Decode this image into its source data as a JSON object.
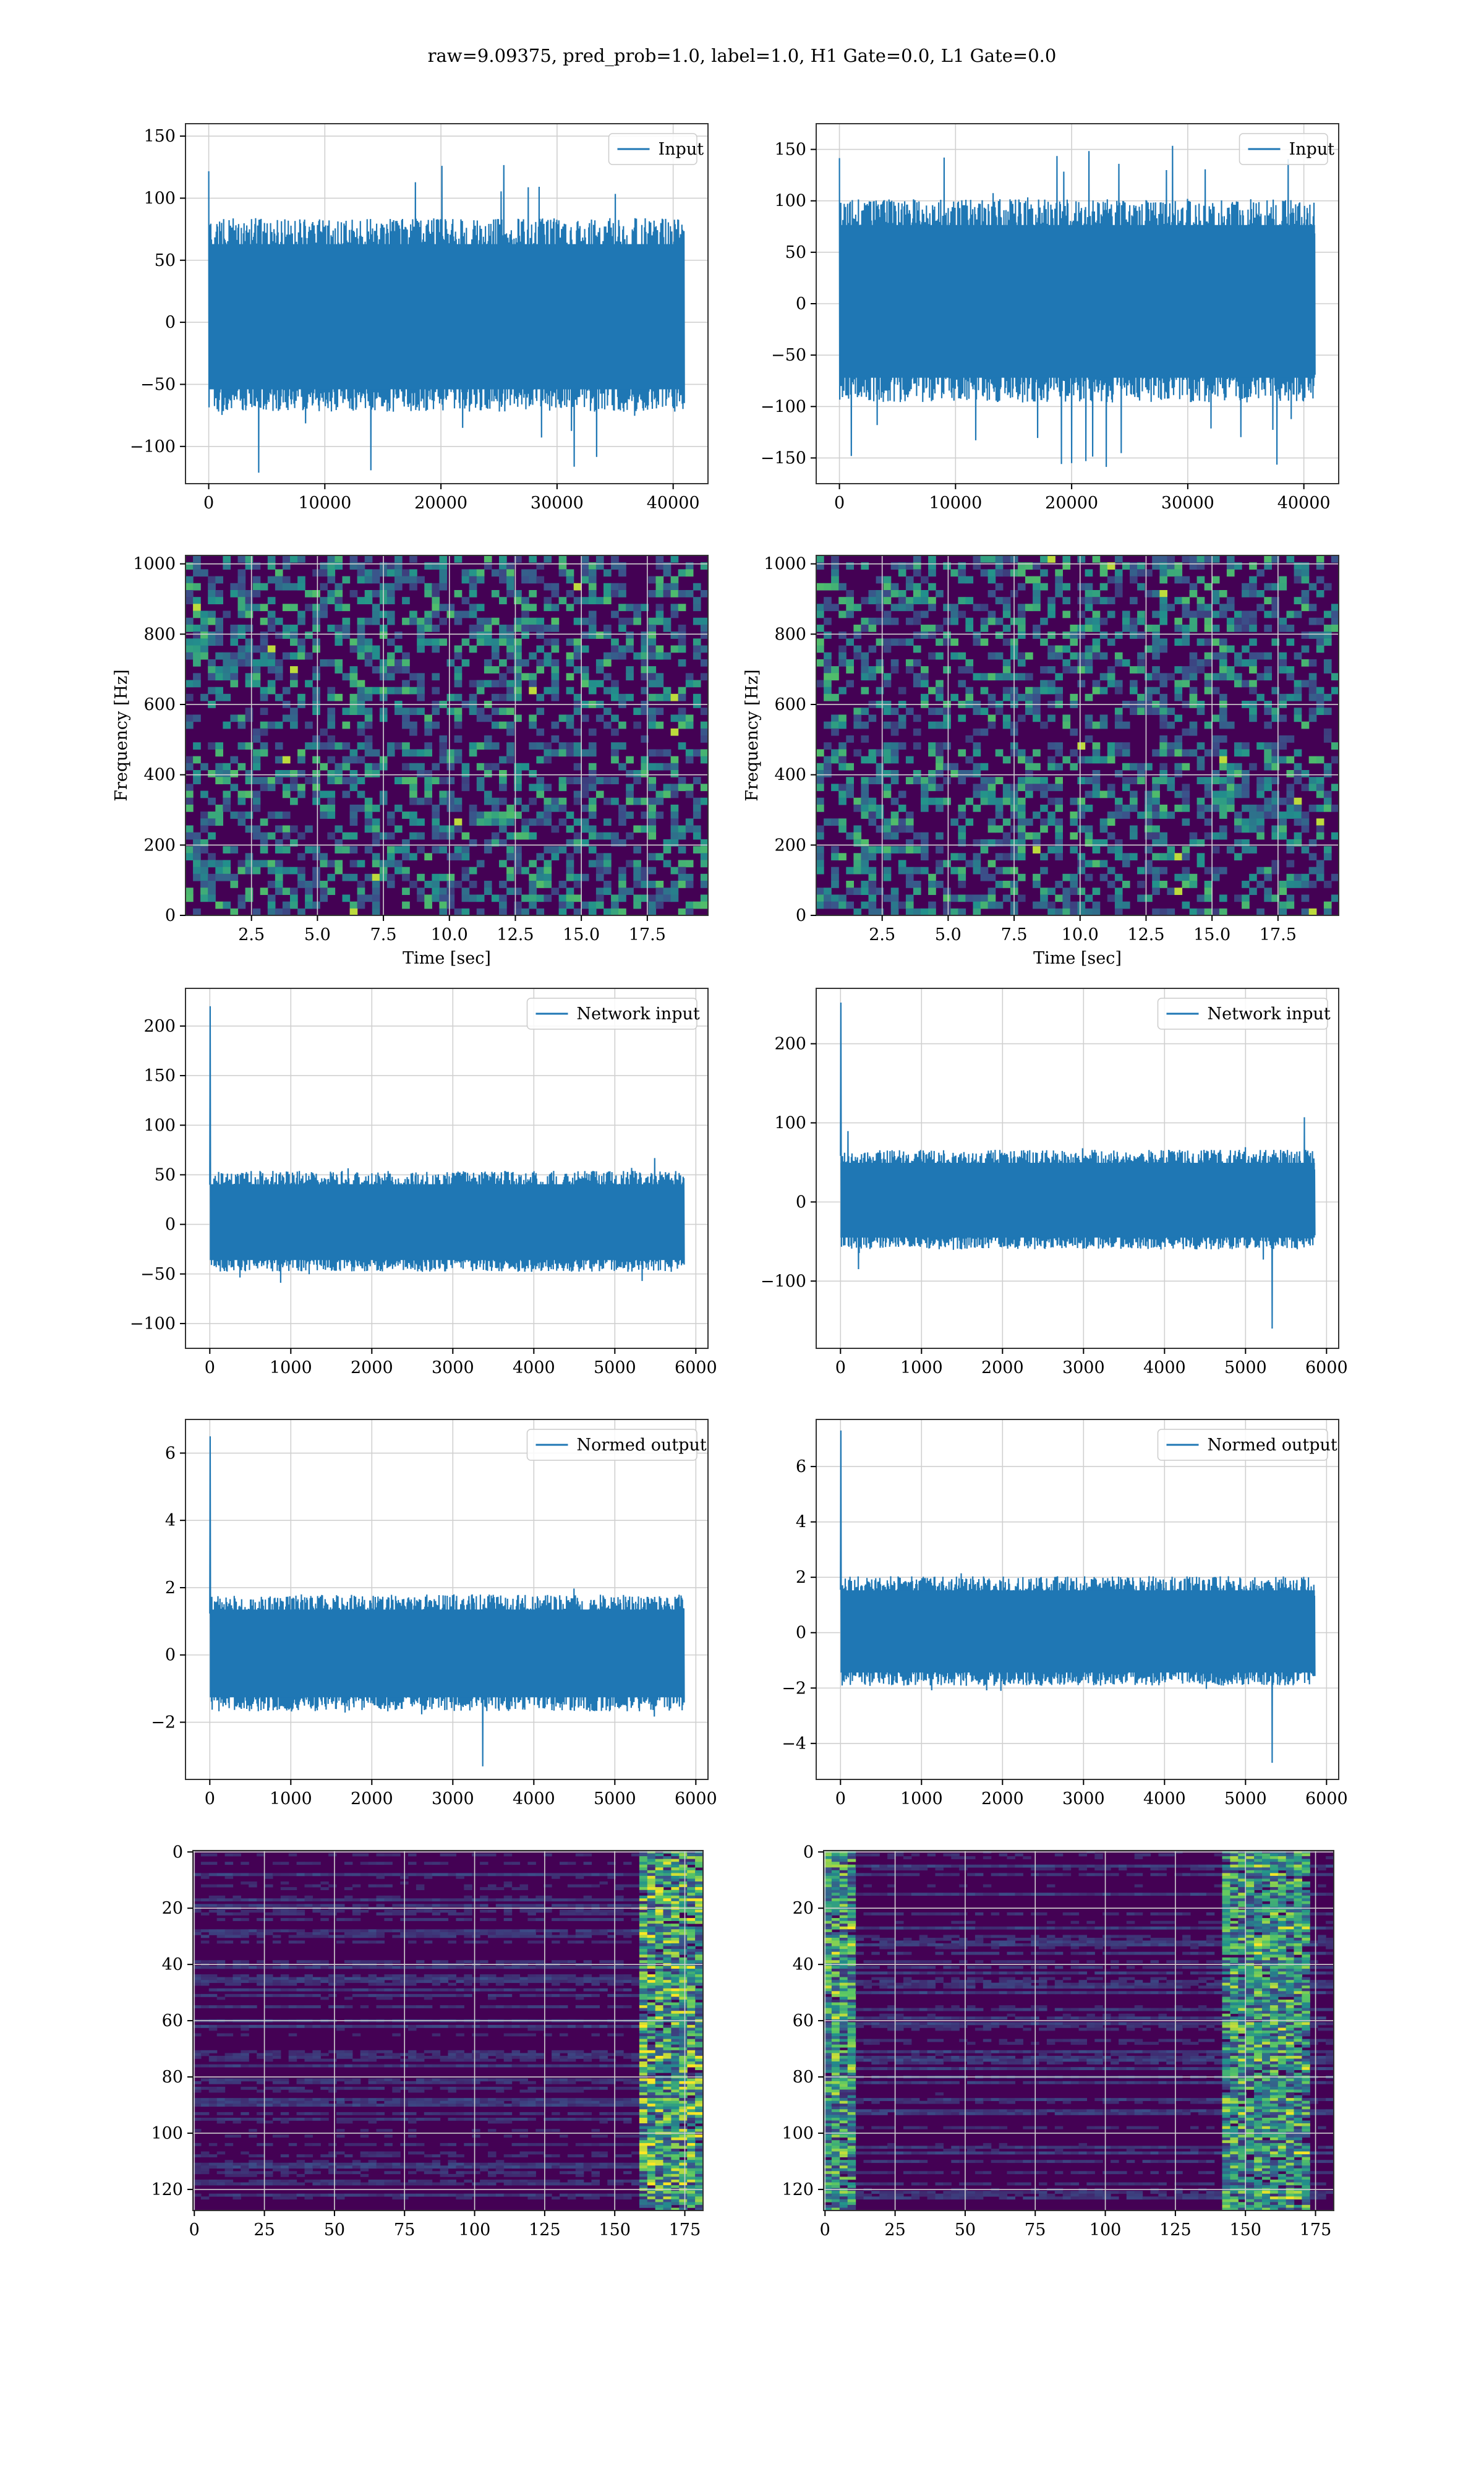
{
  "title": "raw=9.09375, pred_prob=1.0, label=1.0, H1 Gate=0.0, L1 Gate=0.0",
  "colors": {
    "line": "#1f77b4",
    "grid": "#d0d0d0",
    "axes_edge": "#333333",
    "viridis_low": "#440154",
    "viridis_mid": "#21918c",
    "viridis_high": "#fde725"
  },
  "chart_data": [
    {
      "type": "line",
      "panel": "r0c0",
      "title": "",
      "xlabel": "",
      "ylabel": "",
      "legend": "Input",
      "legend_position": "top-right",
      "series": [
        {
          "name": "Input",
          "n_points": 40960,
          "center": 0,
          "band": [
            -60,
            70
          ],
          "peak_range": [
            -122,
            130
          ]
        }
      ],
      "xlim": [
        -2000,
        43000
      ],
      "ylim": [
        -130,
        160
      ],
      "xticks": [
        0,
        10000,
        20000,
        30000,
        40000
      ],
      "yticks": [
        -100,
        -50,
        0,
        50,
        100,
        150
      ],
      "grid": true
    },
    {
      "type": "line",
      "panel": "r0c1",
      "title": "",
      "xlabel": "",
      "ylabel": "",
      "legend": "Input",
      "legend_position": "top-right",
      "series": [
        {
          "name": "Input",
          "n_points": 40960,
          "center": 0,
          "band": [
            -80,
            85
          ],
          "peak_range": [
            -162,
            158
          ]
        }
      ],
      "xlim": [
        -2000,
        43000
      ],
      "ylim": [
        -175,
        175
      ],
      "xticks": [
        0,
        10000,
        20000,
        30000,
        40000
      ],
      "yticks": [
        -150,
        -100,
        -50,
        0,
        50,
        100,
        150
      ],
      "grid": true
    },
    {
      "type": "heatmap",
      "panel": "r1c0",
      "title": "",
      "xlabel": "Time [sec]",
      "ylabel": "Frequency [Hz]",
      "colormap": "viridis",
      "xlim": [
        0,
        19.8
      ],
      "ylim": [
        0,
        1024
      ],
      "xticks": [
        2.5,
        5.0,
        7.5,
        10.0,
        12.5,
        15.0,
        17.5
      ],
      "yticks": [
        0,
        200,
        400,
        600,
        800,
        1000
      ],
      "notes": [
        "faint horizontal band near 500 Hz"
      ],
      "grid": true
    },
    {
      "type": "heatmap",
      "panel": "r1c1",
      "title": "",
      "xlabel": "Time [sec]",
      "ylabel": "Frequency [Hz]",
      "colormap": "viridis",
      "xlim": [
        0,
        19.8
      ],
      "ylim": [
        0,
        1024
      ],
      "xticks": [
        2.5,
        5.0,
        7.5,
        10.0,
        12.5,
        15.0,
        17.5
      ],
      "yticks": [
        0,
        200,
        400,
        600,
        800,
        1000
      ],
      "notes": [
        "faint horizontal band near 500 Hz"
      ],
      "grid": true
    },
    {
      "type": "line",
      "panel": "r2c0",
      "title": "",
      "xlabel": "",
      "ylabel": "",
      "legend": "Network input",
      "legend_position": "top-right",
      "series": [
        {
          "name": "Network input",
          "n_points": 5856,
          "center": 0,
          "band": [
            -40,
            45
          ],
          "spike": {
            "x": 0,
            "y": 220
          }
        }
      ],
      "xlim": [
        -300,
        6150
      ],
      "ylim": [
        -125,
        238
      ],
      "xticks": [
        0,
        1000,
        2000,
        3000,
        4000,
        5000,
        6000
      ],
      "yticks": [
        -100,
        -50,
        0,
        50,
        100,
        150,
        200
      ],
      "grid": true
    },
    {
      "type": "line",
      "panel": "r2c1",
      "title": "",
      "xlabel": "",
      "ylabel": "",
      "legend": "Network input",
      "legend_position": "top-right",
      "series": [
        {
          "name": "Network input",
          "n_points": 5856,
          "center": 0,
          "band": [
            -50,
            55
          ],
          "spike": {
            "x": 0,
            "y": 252
          },
          "min_point": {
            "x": 5330,
            "y": -160
          }
        }
      ],
      "xlim": [
        -300,
        6150
      ],
      "ylim": [
        -185,
        270
      ],
      "xticks": [
        0,
        1000,
        2000,
        3000,
        4000,
        5000,
        6000
      ],
      "yticks": [
        -100,
        0,
        100,
        200
      ],
      "grid": true
    },
    {
      "type": "line",
      "panel": "r3c0",
      "title": "",
      "xlabel": "",
      "ylabel": "",
      "legend": "Normed output",
      "legend_position": "top-right",
      "series": [
        {
          "name": "Normed output",
          "n_points": 5856,
          "center": 0,
          "band": [
            -1.4,
            1.5
          ],
          "spike": {
            "x": 0,
            "y": 6.5
          }
        }
      ],
      "xlim": [
        -300,
        6150
      ],
      "ylim": [
        -3.7,
        7.0
      ],
      "xticks": [
        0,
        1000,
        2000,
        3000,
        4000,
        5000,
        6000
      ],
      "yticks": [
        -2,
        0,
        2,
        4,
        6
      ],
      "grid": true
    },
    {
      "type": "line",
      "panel": "r3c1",
      "title": "",
      "xlabel": "",
      "ylabel": "",
      "legend": "Normed output",
      "legend_position": "top-right",
      "series": [
        {
          "name": "Normed output",
          "n_points": 5856,
          "center": 0,
          "band": [
            -1.6,
            1.7
          ],
          "spike": {
            "x": 0,
            "y": 7.3
          },
          "min_point": {
            "x": 5330,
            "y": -4.7
          }
        }
      ],
      "xlim": [
        -300,
        6150
      ],
      "ylim": [
        -5.3,
        7.7
      ],
      "xticks": [
        0,
        1000,
        2000,
        3000,
        4000,
        5000,
        6000
      ],
      "yticks": [
        -4,
        -2,
        0,
        2,
        4,
        6
      ],
      "grid": true
    },
    {
      "type": "heatmap",
      "panel": "r4c0",
      "title": "",
      "xlabel": "",
      "ylabel": "",
      "colormap": "viridis",
      "shape": [
        128,
        182
      ],
      "xlim": [
        -0.5,
        181.5
      ],
      "ylim": [
        127.5,
        -0.5
      ],
      "xticks": [
        0,
        25,
        50,
        75,
        100,
        125,
        150,
        175
      ],
      "yticks": [
        0,
        20,
        40,
        60,
        80,
        100,
        120
      ],
      "notes": [
        "brightest columns near x=160-180"
      ],
      "grid": true
    },
    {
      "type": "heatmap",
      "panel": "r4c1",
      "title": "",
      "xlabel": "",
      "ylabel": "",
      "colormap": "viridis",
      "shape": [
        128,
        182
      ],
      "xlim": [
        -0.5,
        181.5
      ],
      "ylim": [
        127.5,
        -0.5
      ],
      "xticks": [
        0,
        25,
        50,
        75,
        100,
        125,
        150,
        175
      ],
      "yticks": [
        0,
        20,
        40,
        60,
        80,
        100,
        120
      ],
      "notes": [
        "bright features at x=0-10 and x=150-170"
      ],
      "grid": true
    }
  ]
}
